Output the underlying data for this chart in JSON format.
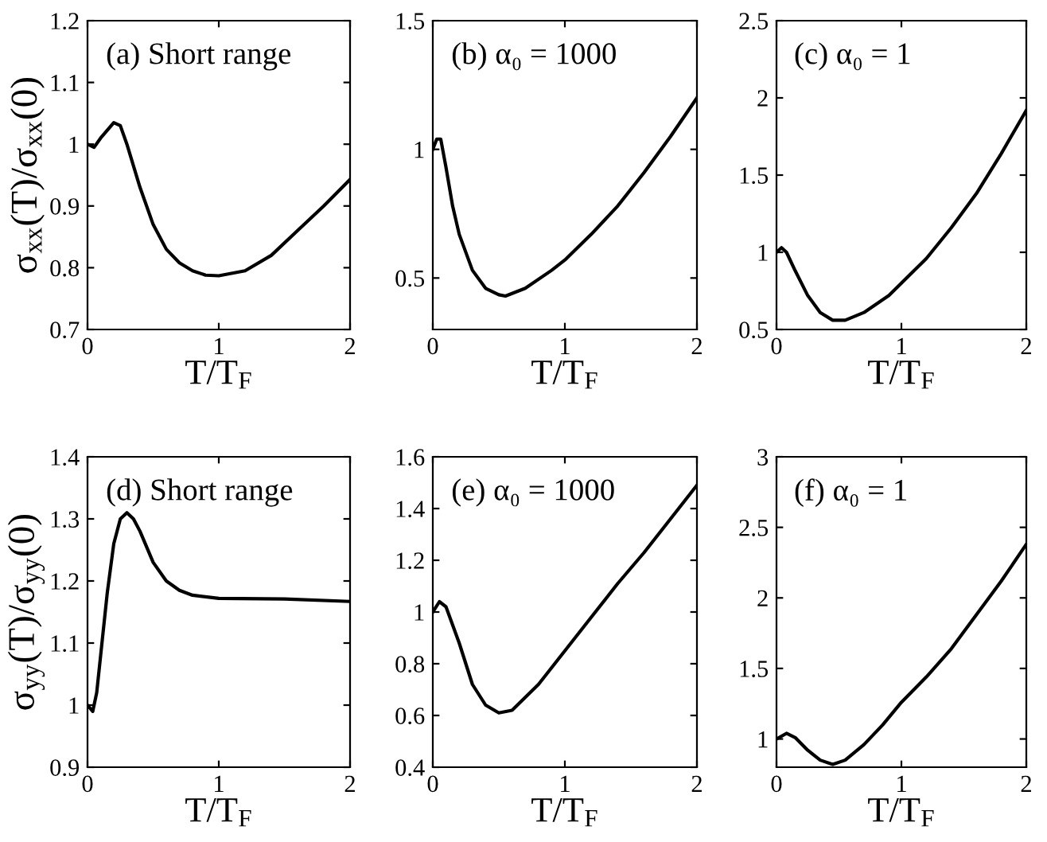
{
  "chart_data": [
    {
      "type": "line",
      "title": "(a) Short range",
      "xlabel": "T/T$_{F}$",
      "ylabel": "σ$_{xx}$(T)/σ$_{xx}$(0)",
      "xlim": [
        0,
        2
      ],
      "ylim": [
        0.7,
        1.2
      ],
      "xticks": [
        0,
        1,
        2
      ],
      "yticks": [
        0.7,
        0.8,
        0.9,
        1,
        1.1,
        1.2
      ],
      "grid": false,
      "series": [
        {
          "color": "#000000",
          "x": [
            0,
            0.05,
            0.1,
            0.2,
            0.25,
            0.3,
            0.4,
            0.5,
            0.6,
            0.7,
            0.8,
            0.9,
            1.0,
            1.2,
            1.4,
            1.6,
            1.8,
            2.0
          ],
          "values": [
            1.0,
            0.995,
            1.01,
            1.035,
            1.03,
            1.0,
            0.93,
            0.87,
            0.83,
            0.808,
            0.795,
            0.788,
            0.787,
            0.795,
            0.82,
            0.86,
            0.9,
            0.943
          ]
        }
      ]
    },
    {
      "type": "line",
      "title": "(b) α₀ = 1000",
      "xlabel": "T/T$_{F}$",
      "xlim": [
        0,
        2
      ],
      "ylim": [
        0.3,
        1.5
      ],
      "xticks": [
        0,
        1,
        2
      ],
      "yticks": [
        0.5,
        1,
        1.5
      ],
      "grid": false,
      "series": [
        {
          "color": "#000000",
          "x": [
            0,
            0.03,
            0.06,
            0.1,
            0.15,
            0.2,
            0.3,
            0.4,
            0.5,
            0.55,
            0.7,
            0.9,
            1.0,
            1.2,
            1.4,
            1.6,
            1.8,
            2.0
          ],
          "values": [
            1.0,
            1.04,
            1.04,
            0.93,
            0.78,
            0.67,
            0.53,
            0.46,
            0.435,
            0.43,
            0.46,
            0.53,
            0.57,
            0.67,
            0.78,
            0.91,
            1.05,
            1.2
          ]
        }
      ]
    },
    {
      "type": "line",
      "title": "(c) α₀ = 1",
      "xlabel": "T/T$_{F}$",
      "xlim": [
        0,
        2
      ],
      "ylim": [
        0.5,
        2.5
      ],
      "xticks": [
        0,
        1,
        2
      ],
      "yticks": [
        0.5,
        1,
        1.5,
        2,
        2.5
      ],
      "grid": false,
      "series": [
        {
          "color": "#000000",
          "x": [
            0,
            0.04,
            0.08,
            0.15,
            0.25,
            0.35,
            0.45,
            0.55,
            0.7,
            0.9,
            1.0,
            1.2,
            1.4,
            1.6,
            1.8,
            2.0
          ],
          "values": [
            1.0,
            1.03,
            1.0,
            0.88,
            0.72,
            0.61,
            0.56,
            0.56,
            0.61,
            0.72,
            0.8,
            0.96,
            1.16,
            1.38,
            1.64,
            1.92
          ]
        }
      ]
    },
    {
      "type": "line",
      "title": "(d) Short range",
      "xlabel": "T/T$_{F}$",
      "ylabel": "σ$_{yy}$(T)/σ$_{yy}$(0)",
      "xlim": [
        0,
        2
      ],
      "ylim": [
        0.9,
        1.4
      ],
      "xticks": [
        0,
        1,
        2
      ],
      "yticks": [
        0.9,
        1,
        1.1,
        1.2,
        1.3,
        1.4
      ],
      "grid": false,
      "series": [
        {
          "color": "#000000",
          "x": [
            0,
            0.04,
            0.07,
            0.1,
            0.15,
            0.2,
            0.25,
            0.3,
            0.35,
            0.4,
            0.5,
            0.6,
            0.7,
            0.8,
            1.0,
            1.5,
            2.0
          ],
          "values": [
            1.0,
            0.99,
            1.02,
            1.08,
            1.18,
            1.26,
            1.3,
            1.31,
            1.3,
            1.28,
            1.23,
            1.2,
            1.185,
            1.177,
            1.172,
            1.171,
            1.167
          ]
        }
      ]
    },
    {
      "type": "line",
      "title": "(e) α₀ = 1000",
      "xlabel": "T/T$_{F}$",
      "xlim": [
        0,
        2
      ],
      "ylim": [
        0.4,
        1.6
      ],
      "xticks": [
        0,
        1,
        2
      ],
      "yticks": [
        0.4,
        0.6,
        0.8,
        1,
        1.2,
        1.4,
        1.6
      ],
      "grid": false,
      "series": [
        {
          "color": "#000000",
          "x": [
            0,
            0.05,
            0.1,
            0.2,
            0.3,
            0.4,
            0.5,
            0.6,
            0.8,
            1.0,
            1.2,
            1.4,
            1.6,
            1.8,
            2.0
          ],
          "values": [
            1.0,
            1.04,
            1.02,
            0.88,
            0.72,
            0.64,
            0.61,
            0.62,
            0.72,
            0.85,
            0.98,
            1.11,
            1.23,
            1.36,
            1.49
          ]
        }
      ]
    },
    {
      "type": "line",
      "title": "(f) α₀ = 1",
      "xlabel": "T/T$_{F}$",
      "xlim": [
        0,
        2
      ],
      "ylim": [
        0.8,
        3
      ],
      "xticks": [
        0,
        1,
        2
      ],
      "yticks": [
        1,
        1.5,
        2,
        2.5,
        3
      ],
      "grid": false,
      "series": [
        {
          "color": "#000000",
          "x": [
            0,
            0.08,
            0.15,
            0.25,
            0.35,
            0.45,
            0.55,
            0.7,
            0.85,
            1.0,
            1.2,
            1.4,
            1.6,
            1.8,
            2.0
          ],
          "values": [
            1.0,
            1.04,
            1.01,
            0.92,
            0.85,
            0.82,
            0.85,
            0.96,
            1.1,
            1.26,
            1.44,
            1.64,
            1.88,
            2.12,
            2.38
          ]
        }
      ]
    }
  ]
}
